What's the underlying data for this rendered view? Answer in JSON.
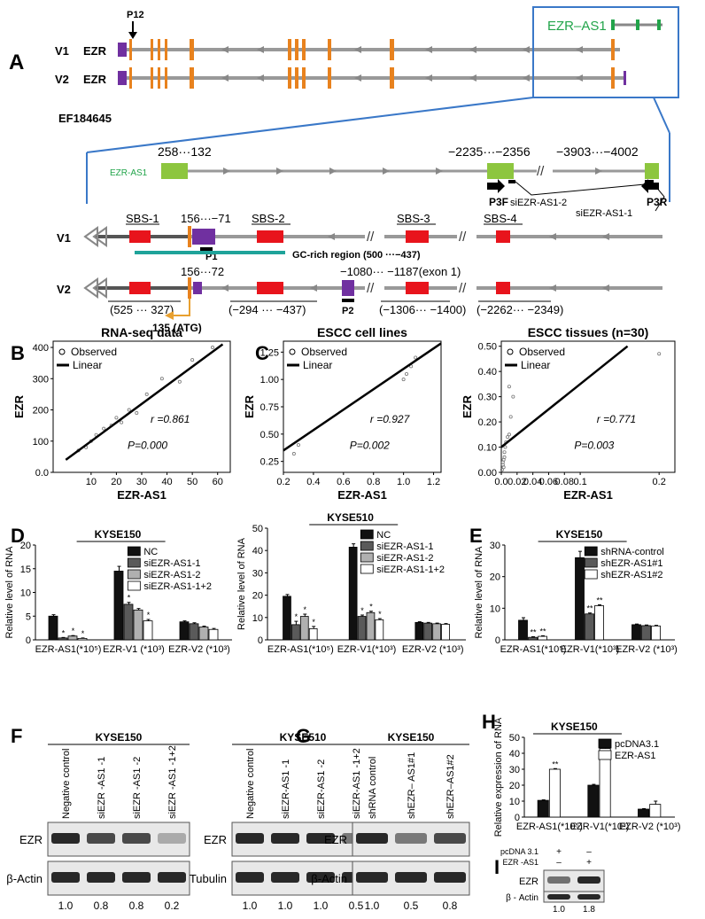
{
  "panelA": {
    "label": "A",
    "p12": "P12",
    "v1": "V1",
    "v2": "V2",
    "ezr": "EZR",
    "ezr_as1_box": "EZR–AS1",
    "accession": "EF184645",
    "pos258": "258···132",
    "pos2235": "−2235···−2356",
    "pos3903": "−3903···−4002",
    "ezr_as1_small": "EZR-AS1",
    "p3f": "P3F",
    "p3r": "P3R",
    "si2": "siEZR-AS1-2",
    "si1": "siEZR-AS1-1",
    "sbs1": "SBS-1",
    "sbs2": "SBS-2",
    "sbs3": "SBS-3",
    "sbs4": "SBS-4",
    "pos156_71": "156···−71",
    "p1": "P1",
    "gc": "GC-rich region (500 ···−437)",
    "pos156_72": "156···72",
    "pos1080": "−1080··· −1187(exon 1)",
    "p2": "P2",
    "r525": "(525 ··· 327)",
    "r294": "(−294 ··· −437)",
    "r1306": "(−1306··· −1400)",
    "r2262": "(−2262··· −2349)",
    "atg": "135 (ATG)",
    "slash": "//"
  },
  "panelLabels": {
    "B": "B",
    "C": "C",
    "D": "D",
    "E": "E",
    "F": "F",
    "G": "G",
    "H": "H",
    "I": "I"
  },
  "common": {
    "observed": "Observed",
    "linear": "Linear",
    "rel_rna": "Relative level of RNA",
    "rel_expr": "Relative expression of RNA",
    "xg1": "EZR-AS1(*10⁵)",
    "xg2": "EZR-V1(*10³)",
    "xg3": "EZR-V2 (*10³)"
  },
  "chart_data": [
    {
      "type": "scatter",
      "panel": "B",
      "title": "RNA-seq data",
      "xlabel": "EZR-AS1",
      "ylabel": "EZR",
      "xlim": [
        -5,
        65
      ],
      "ylim": [
        0,
        420
      ],
      "xticks": [
        "10",
        "20",
        "30",
        "40",
        "50",
        "60"
      ],
      "yticks": [
        "0.0",
        "100",
        "200",
        "300",
        "400"
      ],
      "x": [
        5,
        8,
        10,
        12,
        15,
        18,
        20,
        22,
        25,
        28,
        32,
        38,
        45,
        50,
        58
      ],
      "y": [
        70,
        80,
        100,
        120,
        140,
        150,
        175,
        160,
        200,
        190,
        250,
        300,
        290,
        360,
        400
      ],
      "fit": [
        [
          0,
          40
        ],
        [
          62,
          410
        ]
      ],
      "r": "r =0.861",
      "p": "P=0.000"
    },
    {
      "type": "scatter",
      "panel": "C",
      "title": "ESCC cell lines",
      "xlabel": "EZR-AS1",
      "ylabel": "EZR",
      "xlim": [
        0.2,
        1.25
      ],
      "ylim": [
        0.15,
        1.35
      ],
      "xticks": [
        "0.2",
        "0.4",
        "0.6",
        "0.8",
        "1.0",
        "1.2"
      ],
      "yticks": [
        "0.25",
        "0.50",
        "0.75",
        "1.00",
        "1.25"
      ],
      "x": [
        0.27,
        0.3,
        1.0,
        1.02,
        1.05,
        1.08
      ],
      "y": [
        0.32,
        0.4,
        1.0,
        1.05,
        1.12,
        1.2
      ],
      "fit": [
        [
          0.2,
          0.35
        ],
        [
          1.25,
          1.33
        ]
      ],
      "r": "r =0.927",
      "p": "P=0.002"
    },
    {
      "type": "scatter",
      "panel": "C2",
      "title": "ESCC tissues (n=30)",
      "xlabel": "EZR-AS1",
      "ylabel": "EZR",
      "xlim": [
        0,
        0.22
      ],
      "ylim": [
        0,
        0.52
      ],
      "xticks": [
        "0.0",
        "0.02",
        "0.04",
        "0.06",
        "0.08",
        "0.1",
        "0.2"
      ],
      "xtick_positions": [
        0,
        0.02,
        0.04,
        0.06,
        0.08,
        0.1,
        0.2
      ],
      "yticks": [
        "0.00",
        "0.10",
        "0.20",
        "0.30",
        "0.40",
        "0.50"
      ],
      "x": [
        0.001,
        0.002,
        0.003,
        0.004,
        0.005,
        0.006,
        0.008,
        0.01,
        0.012,
        0.015,
        0.003,
        0.004,
        0.002,
        0.2,
        0.01
      ],
      "y": [
        0.01,
        0.03,
        0.05,
        0.08,
        0.1,
        0.12,
        0.14,
        0.15,
        0.22,
        0.3,
        0.02,
        0.06,
        0.04,
        0.47,
        0.34
      ],
      "fit": [
        [
          0,
          0.1
        ],
        [
          0.16,
          0.5
        ]
      ],
      "r": "r =0.771",
      "p": "P=0.003"
    },
    {
      "type": "bar",
      "panel": "D1",
      "title": "KYSE150",
      "ylim": [
        0,
        20
      ],
      "yticks": [
        "0",
        "5",
        "10",
        "15",
        "20"
      ],
      "categories": [
        "EZR-AS1(*10⁵)",
        "EZR-V1 (*10³)",
        "EZR-V2 (*10³)"
      ],
      "series": [
        {
          "name": "NC",
          "values": [
            5.0,
            14.5,
            3.8
          ],
          "err": [
            0.3,
            1.0,
            0.2
          ]
        },
        {
          "name": "siEZR-AS1-1",
          "values": [
            0.4,
            7.5,
            3.4
          ],
          "err": [
            0.1,
            0.4,
            0.2
          ]
        },
        {
          "name": "siEZR-AS1-2",
          "values": [
            0.8,
            6.3,
            2.7
          ],
          "err": [
            0.1,
            0.3,
            0.2
          ]
        },
        {
          "name": "siEZR-AS1-1+2",
          "values": [
            0.3,
            4.0,
            2.2
          ],
          "err": [
            0.1,
            0.3,
            0.2
          ]
        }
      ],
      "stars": [
        [
          "",
          "*",
          "*",
          "*"
        ],
        [
          "",
          "*",
          "",
          "*"
        ],
        [
          "",
          "",
          "",
          ""
        ]
      ]
    },
    {
      "type": "bar",
      "panel": "D2",
      "title": "KYSE510",
      "ylim": [
        0,
        50
      ],
      "yticks": [
        "0",
        "10",
        "20",
        "30",
        "40",
        "50"
      ],
      "categories": [
        "EZR-AS1(*10⁵)",
        "EZR-V1(*10³)",
        "EZR-V2 (*10³)"
      ],
      "series": [
        {
          "name": "NC",
          "values": [
            19.5,
            41.5,
            7.8
          ],
          "err": [
            0.8,
            1.5,
            0.3
          ]
        },
        {
          "name": "siEZR-AS1-1",
          "values": [
            6.8,
            10.5,
            7.5
          ],
          "err": [
            1.5,
            0.6,
            0.3
          ]
        },
        {
          "name": "siEZR-AS1-2",
          "values": [
            10.5,
            12.2,
            7.2
          ],
          "err": [
            1.0,
            0.6,
            0.3
          ]
        },
        {
          "name": "siEZR-AS1-1+2",
          "values": [
            5.0,
            9.0,
            7.0
          ],
          "err": [
            1.0,
            0.5,
            0.3
          ]
        }
      ],
      "stars": [
        [
          "",
          "*",
          "*",
          "*"
        ],
        [
          "",
          "*",
          "*",
          "*"
        ],
        [
          "",
          "",
          "",
          ""
        ]
      ]
    },
    {
      "type": "bar",
      "panel": "E",
      "title": "KYSE150",
      "ylim": [
        0,
        30
      ],
      "yticks": [
        "0",
        "10",
        "20",
        "30"
      ],
      "categories": [
        "EZR-AS1(*10⁵)",
        "EZR-V1(*10³)",
        "EZR-V2 (*10³)"
      ],
      "series": [
        {
          "name": "shRNA-control",
          "values": [
            6.2,
            26.0,
            4.8
          ],
          "err": [
            0.8,
            2.0,
            0.2
          ]
        },
        {
          "name": "shEZR-AS1#1",
          "values": [
            0.8,
            8.2,
            4.5
          ],
          "err": [
            0.2,
            0.3,
            0.2
          ]
        },
        {
          "name": "shEZR-AS1#2",
          "values": [
            1.1,
            10.8,
            4.4
          ],
          "err": [
            0.2,
            0.3,
            0.2
          ]
        }
      ],
      "stars": [
        [
          "",
          "**",
          "**"
        ],
        [
          "",
          "**",
          "**"
        ],
        [
          "",
          "",
          ""
        ]
      ]
    },
    {
      "type": "bar",
      "panel": "H",
      "title": "KYSE150",
      "ylim": [
        0,
        50
      ],
      "yticks": [
        "0",
        "10",
        "20",
        "30",
        "40",
        "50"
      ],
      "categories": [
        "EZR-AS1(*10⁵)",
        "EZR-V1(*10³)",
        "EZR-V2 (*10³)"
      ],
      "series": [
        {
          "name": "pcDNA3.1",
          "values": [
            10.5,
            20.0,
            5.0
          ],
          "err": [
            0.3,
            0.5,
            0.3
          ]
        },
        {
          "name": "EZR-AS1",
          "values": [
            30.0,
            43.0,
            8.0
          ],
          "err": [
            0.4,
            0.6,
            2.0
          ]
        }
      ],
      "stars": [
        [
          "",
          "**"
        ],
        [
          "",
          "**"
        ],
        [
          "",
          ""
        ]
      ]
    }
  ],
  "blots": {
    "F1": {
      "title": "KYSE150",
      "lanes": [
        "Negative control",
        "siEZR -AS1 -1",
        "siEZR -AS1 -2",
        "siEZR -AS1 -1+2"
      ],
      "row1": "EZR",
      "row2": "β-Actin",
      "quant": [
        "1.0",
        "0.8",
        "0.8",
        "0.2"
      ],
      "intensity": [
        1.0,
        0.8,
        0.8,
        0.2
      ]
    },
    "F2": {
      "title": "KYSE510",
      "lanes": [
        "Negative control",
        "siEZR-AS1 -1",
        "siEZR-AS1 -2",
        "siEZR-AS1 -1+2"
      ],
      "row1": "EZR",
      "row2": "Tubulin",
      "quant": [
        "1.0",
        "1.0",
        "1.0",
        "0.5"
      ],
      "intensity": [
        1.0,
        1.0,
        1.0,
        0.5
      ]
    },
    "G": {
      "title": "KYSE150",
      "lanes": [
        "shRNA control",
        "shEZR– AS1#1",
        "shEZR–AS1#2"
      ],
      "row1": "EZR",
      "row2": "β-Actin",
      "quant": [
        "1.0",
        "0.5",
        "0.8"
      ],
      "intensity": [
        1.0,
        0.5,
        0.8
      ]
    },
    "I": {
      "row_a": "pcDNA 3.1",
      "row_b": "EZR -AS1",
      "signs_a": [
        "+",
        "–"
      ],
      "signs_b": [
        "–",
        "+"
      ],
      "row1": "EZR",
      "row2": "β - Actin",
      "quant": [
        "1.0",
        "1.8"
      ],
      "intensity": [
        0.55,
        1.0
      ]
    }
  }
}
